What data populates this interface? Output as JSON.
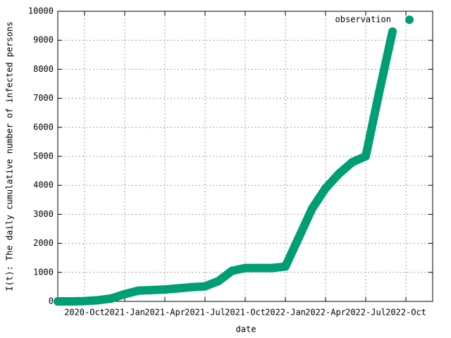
{
  "chart_data": {
    "type": "scatter",
    "xlabel": "date",
    "ylabel": "I(t): The daily cumulative number of infected persons",
    "grid": true,
    "legend": "top-right",
    "x": [
      "2020-08",
      "2020-09",
      "2020-10",
      "2020-11",
      "2020-12",
      "2021-01",
      "2021-02",
      "2021-03",
      "2021-04",
      "2021-05",
      "2021-06",
      "2021-07",
      "2021-08",
      "2021-09",
      "2021-10",
      "2021-11",
      "2021-12",
      "2022-01",
      "2022-02",
      "2022-03",
      "2022-04",
      "2022-05",
      "2022-06",
      "2022-07",
      "2022-08",
      "2022-09"
    ],
    "series": [
      {
        "name": "observation",
        "color": "#009e73",
        "values": [
          0,
          0,
          10,
          40,
          100,
          250,
          370,
          390,
          410,
          450,
          490,
          520,
          700,
          1050,
          1150,
          1150,
          1150,
          1200,
          2200,
          3200,
          3900,
          4400,
          4800,
          5000,
          7200,
          9300
        ]
      }
    ],
    "xlim": [
      "2020-08",
      "2022-12"
    ],
    "xticks": [
      {
        "value": "2020-10",
        "label": "2020-Oct"
      },
      {
        "value": "2021-01",
        "label": "2021-Jan"
      },
      {
        "value": "2021-04",
        "label": "2021-Apr"
      },
      {
        "value": "2021-07",
        "label": "2021-Jul"
      },
      {
        "value": "2021-10",
        "label": "2021-Oct"
      },
      {
        "value": "2022-01",
        "label": "2022-Jan"
      },
      {
        "value": "2022-04",
        "label": "2022-Apr"
      },
      {
        "value": "2022-07",
        "label": "2022-Jul"
      },
      {
        "value": "2022-10",
        "label": "2022-Oct"
      }
    ],
    "ylim": [
      0,
      10000
    ],
    "yticks": [
      0,
      1000,
      2000,
      3000,
      4000,
      5000,
      6000,
      7000,
      8000,
      9000,
      10000
    ]
  }
}
